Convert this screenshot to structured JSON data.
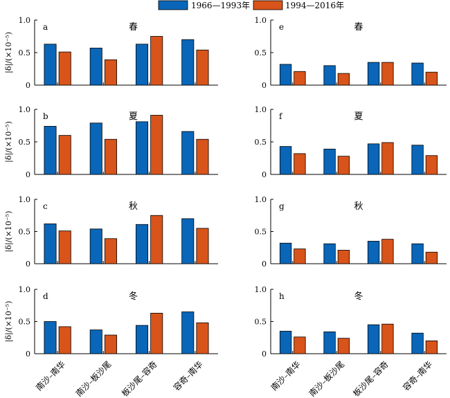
{
  "legend": {
    "series": [
      {
        "label": "1966—1993年",
        "color": "#0a66b8"
      },
      {
        "label": "1994—2016年",
        "color": "#d9541a"
      }
    ]
  },
  "colors": {
    "series1": "#0a66b8",
    "series2": "#d9541a",
    "axis": "#000000"
  },
  "chart_data": [
    {
      "type": "bar",
      "panel": "a",
      "title": "春",
      "ylabel": "|δ|/(×10⁻⁵)",
      "ylim": [
        0,
        1
      ],
      "yticks": [
        "0",
        "0.5",
        "1.0"
      ],
      "categories": [
        "南沙–南华",
        "南沙–板沙尾",
        "板沙尾–容奇",
        "容奇–南华"
      ],
      "series": [
        {
          "name": "1966—1993年",
          "values": [
            0.63,
            0.57,
            0.63,
            0.7
          ]
        },
        {
          "name": "1994—2016年",
          "values": [
            0.51,
            0.39,
            0.75,
            0.54
          ]
        }
      ]
    },
    {
      "type": "bar",
      "panel": "e",
      "title": "春",
      "ylabel": "",
      "ylim": [
        0,
        1
      ],
      "yticks": [
        "0",
        "0.5",
        "1.0"
      ],
      "categories": [
        "南沙–南华",
        "南沙–板沙尾",
        "板沙尾–容奇",
        "容奇–南华"
      ],
      "series": [
        {
          "name": "1966—1993年",
          "values": [
            0.32,
            0.3,
            0.35,
            0.34
          ]
        },
        {
          "name": "1994—2016年",
          "values": [
            0.21,
            0.18,
            0.35,
            0.2
          ]
        }
      ]
    },
    {
      "type": "bar",
      "panel": "b",
      "title": "夏",
      "ylabel": "|δ|/(×10⁻⁵)",
      "ylim": [
        0,
        1
      ],
      "yticks": [
        "0",
        "0.5",
        "1.0"
      ],
      "categories": [
        "南沙–南华",
        "南沙–板沙尾",
        "板沙尾–容奇",
        "容奇–南华"
      ],
      "series": [
        {
          "name": "1966—1993年",
          "values": [
            0.74,
            0.79,
            0.81,
            0.66
          ]
        },
        {
          "name": "1994—2016年",
          "values": [
            0.6,
            0.54,
            0.91,
            0.54
          ]
        }
      ]
    },
    {
      "type": "bar",
      "panel": "f",
      "title": "夏",
      "ylabel": "",
      "ylim": [
        0,
        1
      ],
      "yticks": [
        "0",
        "0.5",
        "1.0"
      ],
      "categories": [
        "南沙–南华",
        "南沙–板沙尾",
        "板沙尾–容奇",
        "容奇–南华"
      ],
      "series": [
        {
          "name": "1966—1993年",
          "values": [
            0.43,
            0.39,
            0.47,
            0.45
          ]
        },
        {
          "name": "1994—2016年",
          "values": [
            0.32,
            0.28,
            0.49,
            0.29
          ]
        }
      ]
    },
    {
      "type": "bar",
      "panel": "c",
      "title": "秋",
      "ylabel": "|δ|/(×10⁻⁵)",
      "ylim": [
        0,
        1
      ],
      "yticks": [
        "0",
        "0.5",
        "1.0"
      ],
      "categories": [
        "南沙–南华",
        "南沙–板沙尾",
        "板沙尾–容奇",
        "容奇–南华"
      ],
      "series": [
        {
          "name": "1966—1993年",
          "values": [
            0.62,
            0.54,
            0.61,
            0.7
          ]
        },
        {
          "name": "1994—2016年",
          "values": [
            0.51,
            0.39,
            0.75,
            0.55
          ]
        }
      ]
    },
    {
      "type": "bar",
      "panel": "g",
      "title": "秋",
      "ylabel": "",
      "ylim": [
        0,
        1
      ],
      "yticks": [
        "0",
        "0.5",
        "1.0"
      ],
      "categories": [
        "南沙–南华",
        "南沙–板沙尾",
        "板沙尾–容奇",
        "容奇–南华"
      ],
      "series": [
        {
          "name": "1966—1993年",
          "values": [
            0.32,
            0.31,
            0.35,
            0.31
          ]
        },
        {
          "name": "1994—2016年",
          "values": [
            0.23,
            0.21,
            0.38,
            0.18
          ]
        }
      ]
    },
    {
      "type": "bar",
      "panel": "d",
      "title": "冬",
      "ylabel": "|δ|/(×10⁻⁵)",
      "ylim": [
        0,
        1
      ],
      "yticks": [
        "0",
        "0.5",
        "1.0"
      ],
      "categories": [
        "南沙–南华",
        "南沙–板沙尾",
        "板沙尾–容奇",
        "容奇–南华"
      ],
      "series": [
        {
          "name": "1966—1993年",
          "values": [
            0.5,
            0.37,
            0.44,
            0.65
          ]
        },
        {
          "name": "1994—2016年",
          "values": [
            0.42,
            0.29,
            0.63,
            0.48
          ]
        }
      ]
    },
    {
      "type": "bar",
      "panel": "h",
      "title": "冬",
      "ylabel": "",
      "ylim": [
        0,
        1
      ],
      "yticks": [
        "0",
        "0.5",
        "1.0"
      ],
      "categories": [
        "南沙–南华",
        "南沙–板沙尾",
        "板沙尾–容奇",
        "容奇–南华"
      ],
      "series": [
        {
          "name": "1966—1993年",
          "values": [
            0.35,
            0.34,
            0.45,
            0.32
          ]
        },
        {
          "name": "1994—2016年",
          "values": [
            0.26,
            0.24,
            0.46,
            0.2
          ]
        }
      ]
    }
  ]
}
